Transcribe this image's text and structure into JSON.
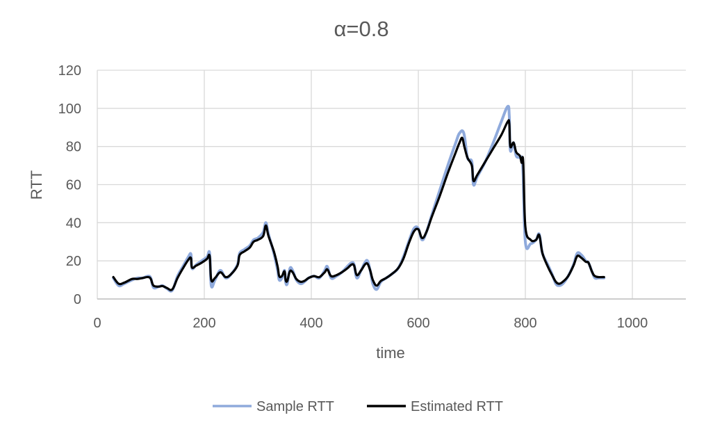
{
  "chart_data": {
    "type": "line",
    "title": "α=0.8",
    "xlabel": "time",
    "ylabel": "RTT",
    "xlim": [
      0,
      1100
    ],
    "ylim": [
      0,
      120
    ],
    "x_ticks": [
      "0",
      "200",
      "400",
      "600",
      "800",
      "1000"
    ],
    "y_ticks": [
      "0",
      "20",
      "40",
      "60",
      "80",
      "100",
      "120"
    ],
    "grid": "both",
    "legend_position": "bottom",
    "series": [
      {
        "name": "Sample RTT",
        "color": "#8faadc",
        "points": [
          [
            30,
            11
          ],
          [
            40,
            7
          ],
          [
            50,
            8
          ],
          [
            65,
            10
          ],
          [
            75,
            11
          ],
          [
            85,
            11
          ],
          [
            95,
            12
          ],
          [
            100,
            11
          ],
          [
            105,
            6
          ],
          [
            115,
            6.5
          ],
          [
            122,
            7
          ],
          [
            130,
            5.5
          ],
          [
            140,
            4.5
          ],
          [
            150,
            12
          ],
          [
            160,
            17
          ],
          [
            170,
            22
          ],
          [
            175,
            23.5
          ],
          [
            177,
            16
          ],
          [
            185,
            18
          ],
          [
            195,
            20
          ],
          [
            205,
            22
          ],
          [
            210,
            24
          ],
          [
            213,
            7
          ],
          [
            220,
            10
          ],
          [
            230,
            15
          ],
          [
            240,
            11
          ],
          [
            250,
            13
          ],
          [
            262,
            18
          ],
          [
            266,
            24
          ],
          [
            275,
            26
          ],
          [
            285,
            28
          ],
          [
            292,
            31
          ],
          [
            300,
            32
          ],
          [
            310,
            35
          ],
          [
            315,
            40
          ],
          [
            320,
            34
          ],
          [
            330,
            24
          ],
          [
            337,
            15
          ],
          [
            340,
            10
          ],
          [
            345,
            11
          ],
          [
            350,
            15
          ],
          [
            352,
            9
          ],
          [
            355,
            8
          ],
          [
            360,
            16
          ],
          [
            365,
            15
          ],
          [
            372,
            10
          ],
          [
            380,
            8
          ],
          [
            387,
            9
          ],
          [
            395,
            11
          ],
          [
            405,
            12
          ],
          [
            415,
            11
          ],
          [
            425,
            15
          ],
          [
            430,
            17
          ],
          [
            437,
            11
          ],
          [
            447,
            12
          ],
          [
            457,
            14
          ],
          [
            467,
            17
          ],
          [
            475,
            19
          ],
          [
            480,
            18
          ],
          [
            485,
            11
          ],
          [
            493,
            15
          ],
          [
            500,
            19
          ],
          [
            505,
            20
          ],
          [
            510,
            15
          ],
          [
            515,
            8
          ],
          [
            522,
            5
          ],
          [
            530,
            9
          ],
          [
            540,
            11
          ],
          [
            550,
            13
          ],
          [
            562,
            16
          ],
          [
            572,
            22
          ],
          [
            582,
            30
          ],
          [
            592,
            37
          ],
          [
            600,
            37
          ],
          [
            607,
            31
          ],
          [
            615,
            35
          ],
          [
            625,
            44
          ],
          [
            640,
            57
          ],
          [
            655,
            70
          ],
          [
            670,
            82
          ],
          [
            677,
            87
          ],
          [
            685,
            87
          ],
          [
            692,
            74
          ],
          [
            700,
            72
          ],
          [
            703,
            60
          ],
          [
            710,
            64
          ],
          [
            725,
            72
          ],
          [
            740,
            82
          ],
          [
            755,
            93
          ],
          [
            767,
            101
          ],
          [
            770,
            96
          ],
          [
            772,
            78
          ],
          [
            778,
            82
          ],
          [
            783,
            75
          ],
          [
            790,
            74
          ],
          [
            795,
            70
          ],
          [
            800,
            30
          ],
          [
            810,
            29
          ],
          [
            820,
            31
          ],
          [
            826,
            34
          ],
          [
            832,
            24
          ],
          [
            842,
            18
          ],
          [
            850,
            13
          ],
          [
            857,
            8
          ],
          [
            863,
            7
          ],
          [
            870,
            8
          ],
          [
            880,
            12
          ],
          [
            890,
            18
          ],
          [
            897,
            24
          ],
          [
            905,
            23
          ],
          [
            913,
            20
          ],
          [
            918,
            19
          ],
          [
            925,
            14
          ],
          [
            930,
            11
          ],
          [
            937,
            11
          ],
          [
            947,
            11
          ]
        ]
      },
      {
        "name": "Estimated RTT",
        "color": "#000000",
        "points": [
          [
            30,
            11.5
          ],
          [
            40,
            8
          ],
          [
            50,
            8.5
          ],
          [
            65,
            10.5
          ],
          [
            75,
            10.5
          ],
          [
            85,
            11
          ],
          [
            95,
            11.5
          ],
          [
            100,
            10.5
          ],
          [
            105,
            7
          ],
          [
            115,
            6.5
          ],
          [
            122,
            6.8
          ],
          [
            130,
            5.8
          ],
          [
            140,
            5
          ],
          [
            150,
            11
          ],
          [
            160,
            16
          ],
          [
            170,
            20.5
          ],
          [
            175,
            21.5
          ],
          [
            177,
            16.5
          ],
          [
            185,
            17.5
          ],
          [
            195,
            19
          ],
          [
            205,
            21
          ],
          [
            210,
            22.5
          ],
          [
            213,
            10
          ],
          [
            220,
            11
          ],
          [
            230,
            14
          ],
          [
            240,
            11.5
          ],
          [
            250,
            13
          ],
          [
            262,
            17.5
          ],
          [
            266,
            23
          ],
          [
            275,
            25
          ],
          [
            285,
            27
          ],
          [
            292,
            30
          ],
          [
            300,
            31
          ],
          [
            310,
            33
          ],
          [
            315,
            38.5
          ],
          [
            320,
            33
          ],
          [
            330,
            25
          ],
          [
            337,
            17
          ],
          [
            340,
            12
          ],
          [
            345,
            12
          ],
          [
            350,
            14.5
          ],
          [
            352,
            10
          ],
          [
            355,
            9.5
          ],
          [
            360,
            14.5
          ],
          [
            365,
            14
          ],
          [
            372,
            10.5
          ],
          [
            380,
            9
          ],
          [
            387,
            9.5
          ],
          [
            395,
            11
          ],
          [
            405,
            12
          ],
          [
            415,
            11.5
          ],
          [
            425,
            14
          ],
          [
            430,
            15.5
          ],
          [
            437,
            12
          ],
          [
            447,
            12.5
          ],
          [
            457,
            14
          ],
          [
            467,
            16
          ],
          [
            475,
            18
          ],
          [
            480,
            17.5
          ],
          [
            485,
            12.5
          ],
          [
            493,
            15
          ],
          [
            500,
            18
          ],
          [
            505,
            18.5
          ],
          [
            510,
            15
          ],
          [
            515,
            10
          ],
          [
            522,
            7
          ],
          [
            530,
            9.5
          ],
          [
            540,
            11
          ],
          [
            550,
            13
          ],
          [
            562,
            16
          ],
          [
            572,
            21
          ],
          [
            582,
            29
          ],
          [
            592,
            35.5
          ],
          [
            600,
            36.5
          ],
          [
            607,
            32
          ],
          [
            615,
            35
          ],
          [
            625,
            43
          ],
          [
            640,
            54
          ],
          [
            655,
            66
          ],
          [
            670,
            77
          ],
          [
            677,
            82
          ],
          [
            682,
            84.5
          ],
          [
            686,
            80
          ],
          [
            692,
            74
          ],
          [
            700,
            70
          ],
          [
            703,
            62
          ],
          [
            710,
            65
          ],
          [
            725,
            72
          ],
          [
            740,
            79
          ],
          [
            755,
            86
          ],
          [
            767,
            93
          ],
          [
            770,
            92
          ],
          [
            772,
            80
          ],
          [
            778,
            82
          ],
          [
            783,
            77
          ],
          [
            790,
            75
          ],
          [
            793,
            71.5
          ],
          [
            796,
            72
          ],
          [
            800,
            38
          ],
          [
            810,
            31
          ],
          [
            820,
            31
          ],
          [
            826,
            33.5
          ],
          [
            832,
            24
          ],
          [
            842,
            17
          ],
          [
            850,
            12.5
          ],
          [
            857,
            9
          ],
          [
            863,
            8
          ],
          [
            870,
            9
          ],
          [
            880,
            12
          ],
          [
            890,
            17.5
          ],
          [
            897,
            22.5
          ],
          [
            905,
            21.5
          ],
          [
            913,
            19.5
          ],
          [
            918,
            19
          ],
          [
            925,
            14
          ],
          [
            930,
            12
          ],
          [
            937,
            11.5
          ],
          [
            947,
            11.5
          ]
        ]
      }
    ]
  }
}
